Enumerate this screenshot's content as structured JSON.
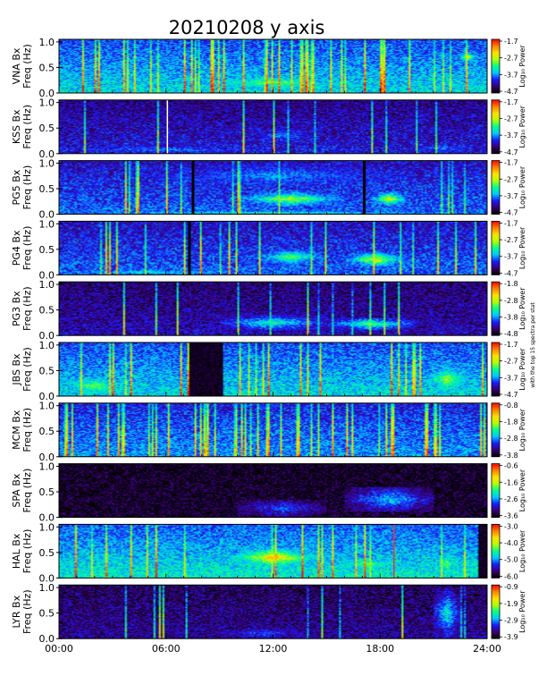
{
  "chart_data": {
    "type": "heatmap",
    "title": "20210208 y axis",
    "x_ticks": [
      "00:00",
      "06:00",
      "12:00",
      "18:00",
      "24:00"
    ],
    "x_range_hours": [
      0,
      24
    ],
    "y_ticks": [
      "1.0",
      "0.5",
      "0.0"
    ],
    "y_range_hz": [
      0,
      1.05
    ],
    "colorbar_label": "Log₁₀ Power",
    "side_note": "with the top 15 spectra per stat",
    "colormap": [
      "#000000",
      "#3a006e",
      "#1a1aff",
      "#00c8ff",
      "#00ff90",
      "#b4ff00",
      "#ffe000",
      "#ff8000",
      "#ff0000"
    ],
    "panels": [
      {
        "station": "VNA Bx",
        "ylabel": "Freq (Hz)",
        "cb_ticks": [
          "-1.7",
          "-2.7",
          "-3.7",
          "-4.7"
        ],
        "cb_range": [
          -4.7,
          -1.7
        ],
        "base_level": 0.42,
        "events": [
          {
            "t0": 8,
            "t1": 16,
            "f0": 0.05,
            "f1": 0.35,
            "level": 0.6
          },
          {
            "t0": 22.5,
            "t1": 23.3,
            "f0": 0.6,
            "f1": 0.8,
            "level": 0.8
          }
        ],
        "stripes": [],
        "gaps": [],
        "striations": 0.8
      },
      {
        "station": "KSS Bx",
        "ylabel": "Freq (Hz)",
        "cb_ticks": [
          "-1.7",
          "-2.7",
          "-3.7",
          "-4.7"
        ],
        "cb_range": [
          -4.7,
          -1.7
        ],
        "base_level": 0.22,
        "events": [
          {
            "t0": 0,
            "t1": 12,
            "f0": 0.0,
            "f1": 0.15,
            "level": 0.35
          },
          {
            "t0": 11,
            "t1": 14,
            "f0": 0.2,
            "f1": 0.5,
            "level": 0.35
          },
          {
            "t0": 20,
            "t1": 23,
            "f0": 0.0,
            "f1": 0.2,
            "level": 0.35
          }
        ],
        "stripes": [
          {
            "t": 6.1,
            "color": "#ffffff"
          }
        ],
        "gaps": [],
        "striations": 0.1
      },
      {
        "station": "PG5 Bx",
        "ylabel": "Freq (Hz)",
        "cb_ticks": [
          "-1.7",
          "-2.7",
          "-3.7",
          "-4.7"
        ],
        "cb_range": [
          -4.7,
          -1.7
        ],
        "base_level": 0.3,
        "events": [
          {
            "t0": 10,
            "t1": 16,
            "f0": 0.15,
            "f1": 0.45,
            "level": 0.65
          },
          {
            "t0": 17.5,
            "t1": 19.5,
            "f0": 0.15,
            "f1": 0.45,
            "level": 0.7
          },
          {
            "t0": 4,
            "t1": 20,
            "f0": 0.5,
            "f1": 1.0,
            "level": 0.35
          },
          {
            "t0": 0,
            "t1": 24,
            "f0": 0.0,
            "f1": 0.06,
            "level": 0.55
          }
        ],
        "stripes": [
          {
            "t": 7.5,
            "color": "#000000"
          },
          {
            "t": 17.1,
            "color": "#000000"
          }
        ],
        "gaps": [],
        "striations": 0.3
      },
      {
        "station": "PG4 Bx",
        "ylabel": "Freq (Hz)",
        "cb_ticks": [
          "-1.7",
          "-2.7",
          "-3.7",
          "-4.7"
        ],
        "cb_range": [
          -4.7,
          -1.7
        ],
        "base_level": 0.3,
        "events": [
          {
            "t0": 11,
            "t1": 15,
            "f0": 0.2,
            "f1": 0.5,
            "level": 0.6
          },
          {
            "t0": 16,
            "t1": 19.5,
            "f0": 0.15,
            "f1": 0.45,
            "level": 0.7
          },
          {
            "t0": 0,
            "t1": 10,
            "f0": 0.0,
            "f1": 0.1,
            "level": 0.5
          }
        ],
        "stripes": [
          {
            "t": 7.3,
            "color": "#000000"
          }
        ],
        "gaps": [],
        "striations": 0.4
      },
      {
        "station": "PG3 Bx",
        "ylabel": "Freq (Hz)",
        "cb_ticks": [
          "-1.8",
          "-2.8",
          "-3.8",
          "-4.8"
        ],
        "cb_range": [
          -4.8,
          -1.8
        ],
        "base_level": 0.18,
        "events": [
          {
            "t0": 9,
            "t1": 15,
            "f0": 0.1,
            "f1": 0.4,
            "level": 0.5
          },
          {
            "t0": 15,
            "t1": 20,
            "f0": 0.1,
            "f1": 0.35,
            "level": 0.55
          }
        ],
        "stripes": [],
        "gaps": [],
        "striations": 0.3
      },
      {
        "station": "JBS Bx",
        "ylabel": "Freq (Hz)",
        "cb_ticks": [
          "-1.7",
          "-2.7",
          "-3.7",
          "-4.7"
        ],
        "cb_range": [
          -4.7,
          -1.7
        ],
        "base_level": 0.42,
        "events": [
          {
            "t0": 0,
            "t1": 4,
            "f0": 0.0,
            "f1": 0.4,
            "level": 0.6
          },
          {
            "t0": 20.5,
            "t1": 23,
            "f0": 0.05,
            "f1": 0.6,
            "level": 0.65
          }
        ],
        "stripes": [],
        "gaps": [
          {
            "t0": 7.3,
            "t1": 9.2
          }
        ],
        "striations": 0.7
      },
      {
        "station": "MCM Bx",
        "ylabel": "Freq (Hz)",
        "cb_ticks": [
          "-0.8",
          "-1.8",
          "-2.8",
          "-3.8"
        ],
        "cb_range": [
          -3.8,
          -0.8
        ],
        "base_level": 0.35,
        "events": [],
        "stripes": [],
        "gaps": [],
        "striations": 1.0
      },
      {
        "station": "SPA Bx",
        "ylabel": "Freq (Hz)",
        "cb_ticks": [
          "-0.6",
          "-1.6",
          "-2.6",
          "-3.6"
        ],
        "cb_range": [
          -3.6,
          -0.6
        ],
        "base_level": 0.05,
        "events": [
          {
            "t0": 10,
            "t1": 15,
            "f0": 0.0,
            "f1": 0.35,
            "level": 0.3
          },
          {
            "t0": 16,
            "t1": 21,
            "f0": 0.1,
            "f1": 0.6,
            "level": 0.4
          }
        ],
        "stripes": [],
        "gaps": [],
        "striations": 0.2
      },
      {
        "station": "HAL Bx",
        "ylabel": "Freq (Hz)",
        "cb_ticks": [
          "-3.0",
          "-4.0",
          "-5.0",
          "-6.0"
        ],
        "cb_range": [
          -6.0,
          -3.0
        ],
        "base_level": 0.45,
        "events": [
          {
            "t0": 9.5,
            "t1": 14.5,
            "f0": 0.2,
            "f1": 0.6,
            "level": 0.8
          },
          {
            "t0": 15.5,
            "t1": 19,
            "f0": 0.15,
            "f1": 0.4,
            "level": 0.6
          },
          {
            "t0": 21,
            "t1": 22.5,
            "f0": 0.05,
            "f1": 0.5,
            "level": 0.6
          }
        ],
        "stripes": [
          {
            "t": 18.8,
            "color": "#ff3030"
          }
        ],
        "gaps": [
          {
            "t0": 23.5,
            "t1": 24
          }
        ],
        "striations": 0.3
      },
      {
        "station": "LYR Bx",
        "ylabel": "Freq (Hz)",
        "cb_ticks": [
          "-0.9",
          "-1.9",
          "-2.9",
          "-3.9"
        ],
        "cb_range": [
          -3.9,
          -0.9
        ],
        "base_level": 0.15,
        "events": [
          {
            "t0": 21,
            "t1": 22.5,
            "f0": 0.0,
            "f1": 1.0,
            "level": 0.45
          },
          {
            "t0": 9,
            "t1": 14,
            "f0": 0.0,
            "f1": 0.2,
            "level": 0.3
          }
        ],
        "stripes": [],
        "gaps": [],
        "striations": 0.3
      }
    ]
  }
}
